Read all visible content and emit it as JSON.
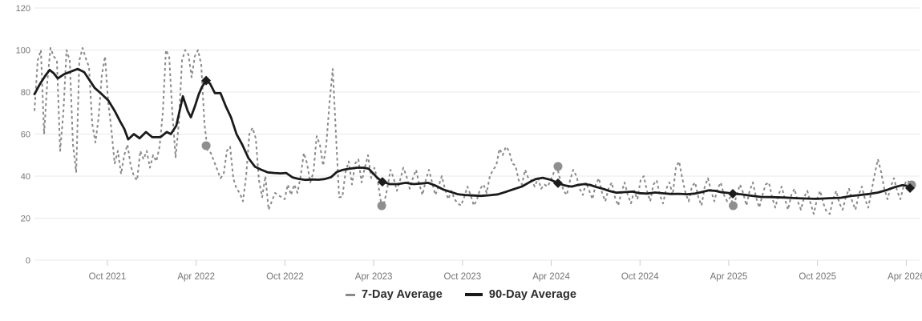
{
  "page": {
    "background": "#ffffff"
  },
  "legend": {
    "items": [
      {
        "label": "7-Day Average",
        "swatch_color": "#8a8a8a",
        "style": "dashed"
      },
      {
        "label": "90-Day Average",
        "swatch_color": "#1a1a1a",
        "style": "solid"
      }
    ]
  },
  "chart_data": {
    "type": "line",
    "title": "",
    "xlabel": "",
    "ylabel": "",
    "grid": true,
    "legend_position": "bottom",
    "colors": {
      "grid_line": "#e8e8e8",
      "axis_tick": "#cccccc",
      "axis_label": "#757575",
      "seven_day_line": "#8a8a8a",
      "ninety_day_line": "#1a1a1a",
      "circle_marker": "#8f8f8f",
      "diamond_marker": "#1c1c1c"
    },
    "y_axis": {
      "min": 0,
      "max": 120,
      "ticks": [
        0,
        20,
        40,
        60,
        80,
        100,
        120
      ]
    },
    "x_axis": {
      "type": "time-decimal-years",
      "min": 2021.339,
      "max": 2026.325,
      "ticks": [
        {
          "t": 2021.75,
          "label": "Oct 2021"
        },
        {
          "t": 2022.25,
          "label": "Apr 2022"
        },
        {
          "t": 2022.75,
          "label": "Oct 2022"
        },
        {
          "t": 2023.25,
          "label": "Apr 2023"
        },
        {
          "t": 2023.75,
          "label": "Oct 2023"
        },
        {
          "t": 2024.25,
          "label": "Apr 2024"
        },
        {
          "t": 2024.75,
          "label": "Oct 2024"
        },
        {
          "t": 2025.25,
          "label": "Apr 2025"
        },
        {
          "t": 2025.75,
          "label": "Oct 2025"
        },
        {
          "t": 2026.25,
          "label": "Apr 2026"
        }
      ]
    },
    "series": [
      {
        "name": "7-Day Average",
        "style": "dashed",
        "color": "#8a8a8a",
        "stroke_width": 2,
        "t_start": 2021.339,
        "t_step": 0.018066,
        "values": [
          71,
          95,
          100,
          60,
          85,
          101,
          97,
          95,
          52,
          70,
          100,
          95,
          55,
          42,
          95,
          101,
          96,
          92,
          65,
          56,
          68,
          88,
          97,
          75,
          62,
          46,
          52,
          41,
          50,
          55,
          45,
          40,
          38,
          52,
          48,
          52,
          44,
          50,
          47,
          54,
          70,
          100,
          97,
          70,
          49,
          65,
          95,
          100,
          98,
          87,
          97,
          100,
          93,
          65,
          52,
          51,
          47,
          43,
          39,
          41,
          52,
          54,
          39,
          34,
          32,
          28,
          40,
          60,
          63,
          58,
          38,
          30,
          40,
          24,
          28,
          32,
          31,
          30,
          29,
          36,
          31,
          36,
          32,
          40,
          51,
          46,
          37,
          42,
          59,
          55,
          45,
          55,
          75,
          91,
          60,
          30,
          30,
          42,
          47,
          36,
          46,
          48,
          37,
          44,
          50,
          39,
          44,
          38,
          28,
          27,
          34,
          43,
          39,
          33,
          38,
          44,
          40,
          34,
          39,
          43,
          36,
          31,
          38,
          43,
          37,
          31,
          35,
          40,
          34,
          29,
          33,
          29,
          27,
          26,
          30,
          35,
          31,
          26,
          29,
          34,
          36,
          32,
          40,
          43,
          45,
          53,
          50,
          54,
          52,
          46,
          45,
          38,
          36,
          43,
          39,
          38,
          35,
          39,
          34,
          36,
          35,
          38,
          42,
          44,
          38,
          33,
          31,
          38,
          43,
          40,
          34,
          31,
          37,
          33,
          29,
          36,
          39,
          32,
          28,
          34,
          37,
          30,
          26,
          32,
          37,
          31,
          27,
          33,
          29,
          38,
          40,
          33,
          28,
          36,
          38,
          31,
          27,
          34,
          37,
          31,
          44,
          47,
          39,
          32,
          28,
          35,
          37,
          30,
          26,
          35,
          39,
          33,
          28,
          34,
          37,
          31,
          28,
          30,
          26,
          31,
          36,
          32,
          26,
          33,
          37,
          30,
          25,
          31,
          36,
          37,
          30,
          25,
          31,
          35,
          29,
          24,
          31,
          34,
          28,
          24,
          30,
          33,
          27,
          22,
          29,
          33,
          27,
          23,
          22,
          29,
          33,
          27,
          24,
          30,
          34,
          28,
          24,
          31,
          35,
          29,
          25,
          33,
          41,
          48,
          42,
          34,
          29,
          35,
          39,
          33,
          29,
          35,
          38,
          37,
          36
        ]
      },
      {
        "name": "90-Day Average",
        "style": "solid",
        "color": "#1a1a1a",
        "stroke_width": 2.8,
        "points": [
          [
            2021.339,
            79
          ],
          [
            2021.371,
            84
          ],
          [
            2021.402,
            88
          ],
          [
            2021.425,
            90.5
          ],
          [
            2021.447,
            89
          ],
          [
            2021.47,
            86.5
          ],
          [
            2021.506,
            88.5
          ],
          [
            2021.551,
            90
          ],
          [
            2021.583,
            91
          ],
          [
            2021.619,
            89.5
          ],
          [
            2021.678,
            82
          ],
          [
            2021.718,
            79
          ],
          [
            2021.755,
            76
          ],
          [
            2021.791,
            71
          ],
          [
            2021.822,
            66
          ],
          [
            2021.845,
            62.5
          ],
          [
            2021.867,
            57.5
          ],
          [
            2021.899,
            60
          ],
          [
            2021.931,
            58
          ],
          [
            2021.967,
            61
          ],
          [
            2022.003,
            58.5
          ],
          [
            2022.048,
            58.5
          ],
          [
            2022.084,
            61
          ],
          [
            2022.107,
            60
          ],
          [
            2022.138,
            64
          ],
          [
            2022.175,
            78
          ],
          [
            2022.202,
            71
          ],
          [
            2022.22,
            68
          ],
          [
            2022.242,
            73
          ],
          [
            2022.265,
            79
          ],
          [
            2022.283,
            82.5
          ],
          [
            2022.306,
            85.5
          ],
          [
            2022.328,
            84
          ],
          [
            2022.355,
            79.5
          ],
          [
            2022.387,
            79.5
          ],
          [
            2022.418,
            73
          ],
          [
            2022.446,
            68
          ],
          [
            2022.477,
            60
          ],
          [
            2022.509,
            55
          ],
          [
            2022.545,
            48.5
          ],
          [
            2022.581,
            44.5
          ],
          [
            2022.617,
            43
          ],
          [
            2022.653,
            41.8
          ],
          [
            2022.69,
            41.5
          ],
          [
            2022.726,
            41.3
          ],
          [
            2022.757,
            41.5
          ],
          [
            2022.793,
            39.4
          ],
          [
            2022.825,
            38.7
          ],
          [
            2022.866,
            38.2
          ],
          [
            2022.902,
            38.4
          ],
          [
            2022.938,
            38.3
          ],
          [
            2022.974,
            38.6
          ],
          [
            2023.01,
            39.5
          ],
          [
            2023.042,
            42
          ],
          [
            2023.078,
            43
          ],
          [
            2023.114,
            43.5
          ],
          [
            2023.155,
            44
          ],
          [
            2023.191,
            44
          ],
          [
            2023.222,
            43.5
          ],
          [
            2023.268,
            39.4
          ],
          [
            2023.299,
            37.3
          ],
          [
            2023.34,
            36.2
          ],
          [
            2023.385,
            36.2
          ],
          [
            2023.43,
            36.8
          ],
          [
            2023.475,
            36.2
          ],
          [
            2023.52,
            36.5
          ],
          [
            2023.557,
            36.8
          ],
          [
            2023.597,
            35.5
          ],
          [
            2023.642,
            33.6
          ],
          [
            2023.683,
            32.5
          ],
          [
            2023.723,
            31.4
          ],
          [
            2023.764,
            31
          ],
          [
            2023.809,
            30.8
          ],
          [
            2023.854,
            30.6
          ],
          [
            2023.904,
            30.9
          ],
          [
            2023.949,
            31.3
          ],
          [
            2023.994,
            32.5
          ],
          [
            2024.039,
            33.8
          ],
          [
            2024.084,
            35
          ],
          [
            2024.13,
            37.2
          ],
          [
            2024.162,
            38.6
          ],
          [
            2024.202,
            39.2
          ],
          [
            2024.248,
            38.2
          ],
          [
            2024.288,
            36.6
          ],
          [
            2024.329,
            35.5
          ],
          [
            2024.365,
            35
          ],
          [
            2024.401,
            35.8
          ],
          [
            2024.437,
            36.2
          ],
          [
            2024.469,
            35.8
          ],
          [
            2024.505,
            34.8
          ],
          [
            2024.541,
            34
          ],
          [
            2024.577,
            32.9
          ],
          [
            2024.618,
            32.1
          ],
          [
            2024.663,
            32.4
          ],
          [
            2024.708,
            32.6
          ],
          [
            2024.744,
            31.9
          ],
          [
            2024.79,
            31.7
          ],
          [
            2024.835,
            32.2
          ],
          [
            2024.88,
            31.8
          ],
          [
            2024.925,
            31.5
          ],
          [
            2024.97,
            31.6
          ],
          [
            2025.015,
            31.4
          ],
          [
            2025.061,
            31.7
          ],
          [
            2025.101,
            32.5
          ],
          [
            2025.138,
            33.2
          ],
          [
            2025.174,
            33
          ],
          [
            2025.21,
            32.3
          ],
          [
            2025.246,
            32
          ],
          [
            2025.269,
            31.6
          ],
          [
            2025.318,
            31.4
          ],
          [
            2025.368,
            30.8
          ],
          [
            2025.431,
            30.1
          ],
          [
            2025.499,
            30
          ],
          [
            2025.567,
            29.8
          ],
          [
            2025.634,
            29.5
          ],
          [
            2025.702,
            29.3
          ],
          [
            2025.747,
            29.2
          ],
          [
            2025.815,
            29.5
          ],
          [
            2025.883,
            29.7
          ],
          [
            2025.937,
            30.5
          ],
          [
            2025.991,
            31
          ],
          [
            2026.041,
            31.5
          ],
          [
            2026.091,
            32.2
          ],
          [
            2026.141,
            33.4
          ],
          [
            2026.186,
            34.8
          ],
          [
            2026.227,
            35.7
          ],
          [
            2026.268,
            35.2
          ],
          [
            2026.285,
            34.5
          ]
        ]
      }
    ],
    "annotations": {
      "diamond_markers": {
        "on_series": "90-Day Average",
        "color": "#1c1c1c",
        "points": [
          [
            2022.306,
            85.5
          ],
          [
            2023.299,
            37.3
          ],
          [
            2024.288,
            36.6
          ],
          [
            2025.273,
            31.6
          ],
          [
            2026.271,
            34.3
          ]
        ]
      },
      "circle_markers": {
        "on_series": "7-Day Average",
        "color": "#8f8f8f",
        "points": [
          [
            2022.306,
            54.5
          ],
          [
            2023.295,
            25.9
          ],
          [
            2024.288,
            44.6
          ],
          [
            2025.275,
            25.9
          ],
          [
            2026.28,
            35.8
          ]
        ]
      }
    }
  }
}
